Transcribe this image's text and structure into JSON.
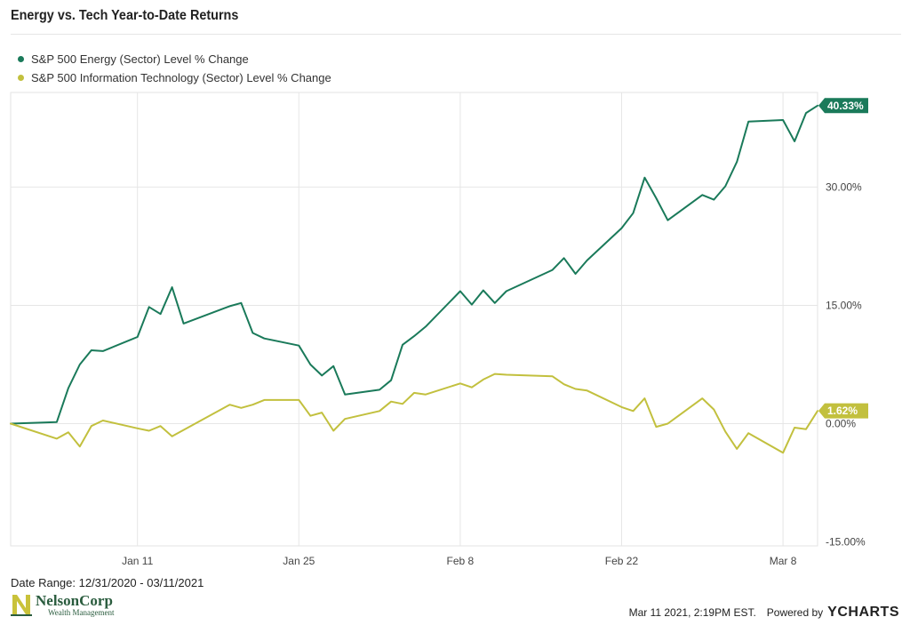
{
  "header": {
    "title": "Energy vs. Tech Year-to-Date Returns"
  },
  "footer": {
    "date_range": "Date Range: 12/31/2020 - 03/11/2021",
    "timestamp": "Mar 11 2021, 2:19PM EST.",
    "powered_by": "Powered by",
    "brand": "YCHARTS",
    "logo_name": "NelsonCorp",
    "logo_sub": "Wealth Management"
  },
  "colors": {
    "energy": "#1a7a5a",
    "tech": "#c2c03e",
    "grid": "#e6e6e6"
  },
  "chart_data": {
    "type": "line",
    "x_start": "2020-12-31",
    "x_end": "2021-03-11",
    "ylim": [
      -15.5,
      42
    ],
    "y_axis_position": "right",
    "grid": true,
    "legend_position": "top-left",
    "x_ticks": [
      {
        "date": "2021-01-11",
        "label": "Jan 11"
      },
      {
        "date": "2021-01-25",
        "label": "Jan 25"
      },
      {
        "date": "2021-02-08",
        "label": "Feb 8"
      },
      {
        "date": "2021-02-22",
        "label": "Feb 22"
      },
      {
        "date": "2021-03-08",
        "label": "Mar 8"
      }
    ],
    "y_ticks": [
      {
        "value": 30,
        "label": "30.00%"
      },
      {
        "value": 15,
        "label": "15.00%"
      },
      {
        "value": 0,
        "label": "0.00%"
      },
      {
        "value": -15,
        "label": "-15.00%"
      }
    ],
    "dates": [
      "2020-12-31",
      "2021-01-04",
      "2021-01-05",
      "2021-01-06",
      "2021-01-07",
      "2021-01-08",
      "2021-01-11",
      "2021-01-12",
      "2021-01-13",
      "2021-01-14",
      "2021-01-15",
      "2021-01-19",
      "2021-01-20",
      "2021-01-21",
      "2021-01-22",
      "2021-01-25",
      "2021-01-26",
      "2021-01-27",
      "2021-01-28",
      "2021-01-29",
      "2021-02-01",
      "2021-02-02",
      "2021-02-03",
      "2021-02-04",
      "2021-02-05",
      "2021-02-08",
      "2021-02-09",
      "2021-02-10",
      "2021-02-11",
      "2021-02-12",
      "2021-02-16",
      "2021-02-17",
      "2021-02-18",
      "2021-02-19",
      "2021-02-22",
      "2021-02-23",
      "2021-02-24",
      "2021-02-25",
      "2021-02-26",
      "2021-03-01",
      "2021-03-02",
      "2021-03-03",
      "2021-03-04",
      "2021-03-05",
      "2021-03-08",
      "2021-03-09",
      "2021-03-10",
      "2021-03-11"
    ],
    "series": [
      {
        "name": "S&P 500 Energy (Sector) Level % Change",
        "color": "#1a7a5a",
        "last_label": "40.33%",
        "values": [
          0,
          0.2,
          4.5,
          7.5,
          9.3,
          9.2,
          11.0,
          14.8,
          13.9,
          17.3,
          12.7,
          14.9,
          15.3,
          11.5,
          10.8,
          9.9,
          7.5,
          6.1,
          7.3,
          3.7,
          4.3,
          5.5,
          10.0,
          11.1,
          12.3,
          16.8,
          15.1,
          16.9,
          15.3,
          16.8,
          19.5,
          21.0,
          19.0,
          20.7,
          24.8,
          26.7,
          31.2,
          28.6,
          25.8,
          29.0,
          28.4,
          30.1,
          33.2,
          38.3,
          38.5,
          35.8,
          39.4,
          40.33
        ]
      },
      {
        "name": "S&P 500 Information Technology (Sector) Level % Change",
        "color": "#c2c03e",
        "last_label": "1.62%",
        "values": [
          0,
          -1.9,
          -1.1,
          -2.9,
          -0.3,
          0.4,
          -0.6,
          -0.9,
          -0.3,
          -1.6,
          -0.8,
          2.4,
          2.0,
          2.4,
          3.0,
          3.0,
          1.0,
          1.4,
          -0.9,
          0.6,
          1.6,
          2.8,
          2.5,
          3.9,
          3.7,
          5.1,
          4.6,
          5.6,
          6.3,
          6.2,
          6.0,
          5.0,
          4.4,
          4.2,
          2.1,
          1.6,
          3.2,
          -0.4,
          0.0,
          3.2,
          1.8,
          -1.0,
          -3.2,
          -1.2,
          -3.7,
          -0.5,
          -0.7,
          1.62
        ]
      }
    ]
  }
}
